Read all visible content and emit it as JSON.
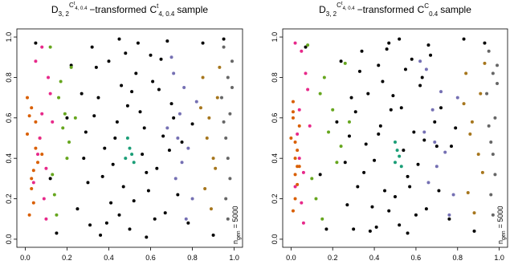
{
  "chart_data": [
    {
      "type": "scatter",
      "title": {
        "base": "D",
        "sub": "3, 2",
        "sup": "C",
        "sup_sup": "t",
        "sup_sub": "4, 0.4",
        "middle": "−transformed",
        "copula": "C",
        "copula_sup": "t",
        "copula_sub": "4, 0.4",
        "end": "sample"
      },
      "annotation": {
        "base": "n",
        "sub": "gen",
        "rest": "= 5000"
      },
      "xlim": [
        -0.04,
        1.04
      ],
      "ylim": [
        -0.04,
        1.04
      ],
      "xticks": [
        {
          "value": 0,
          "label": "0.0"
        },
        0.2,
        0.4,
        0.6,
        0.8,
        {
          "value": 1,
          "label": "1.0"
        }
      ],
      "yticks": [
        {
          "value": 0,
          "label": "0.0"
        },
        0.2,
        0.4,
        0.6,
        0.8,
        {
          "value": 1,
          "label": "1.0"
        }
      ],
      "series": [
        {
          "color": "#000000",
          "x": [
            0.32,
            0.45,
            0.61,
            0.28,
            0.55,
            0.73,
            0.4,
            0.5,
            0.66,
            0.35,
            0.58,
            0.48,
            0.25,
            0.7,
            0.38,
            0.62,
            0.44,
            0.53,
            0.3,
            0.68,
            0.42,
            0.57,
            0.36,
            0.64,
            0.47,
            0.22,
            0.75,
            0.52,
            0.33,
            0.6,
            0.05,
            0.15,
            0.85,
            0.95,
            0.12,
            0.9,
            0.27,
            0.78,
            0.41,
            0.56,
            0.34,
            0.63,
            0.49,
            0.71,
            0.39,
            0.59,
            0.46,
            0.29,
            0.67,
            0.54,
            0.2,
            0.8,
            0.43,
            0.51,
            0.37,
            0.65,
            0.31,
            0.69,
            0.45,
            0.58
          ],
          "y": [
            0.95,
            0.12,
            0.78,
            0.4,
            0.63,
            0.22,
            0.88,
            0.05,
            0.51,
            0.7,
            0.33,
            0.92,
            0.15,
            0.67,
            0.45,
            0.1,
            0.58,
            0.82,
            0.28,
            0.98,
            0.37,
            0.55,
            0.02,
            0.74,
            0.26,
            0.86,
            0.48,
            0.19,
            0.61,
            0.91,
            0.97,
            0.03,
            0.97,
            0.99,
            0.3,
            0.02,
            0.72,
            0.08,
            0.18,
            0.42,
            0.85,
            0.35,
            0.66,
            0.6,
            0.08,
            0.24,
            0.76,
            0.53,
            0.13,
            0.97,
            0.6,
            0.57,
            0.5,
            0.73,
            0.31,
            0.89,
            0.07,
            0.44,
            0.99,
            0.01
          ]
        },
        {
          "color": "#d95f02",
          "x": [
            0.01,
            0.03,
            0.05,
            0.02,
            0.04,
            0.06,
            0.01,
            0.03,
            0.07,
            0.02,
            0.05,
            0.04,
            0.08,
            0.03
          ],
          "y": [
            0.52,
            0.3,
            0.45,
            0.61,
            0.18,
            0.38,
            0.7,
            0.25,
            0.5,
            0.12,
            0.58,
            0.34,
            0.42,
            0.65
          ]
        },
        {
          "color": "#e7298a",
          "x": [
            0.05,
            0.08,
            0.1,
            0.12,
            0.07,
            0.09,
            0.11,
            0.06,
            0.13,
            0.04,
            0.1,
            0.08
          ],
          "y": [
            0.88,
            0.62,
            0.35,
            0.72,
            0.5,
            0.2,
            0.8,
            0.42,
            0.58,
            0.28,
            0.1,
            0.95
          ]
        },
        {
          "color": "#66a61e",
          "x": [
            0.12,
            0.16,
            0.2,
            0.14,
            0.18,
            0.22,
            0.15,
            0.19,
            0.13,
            0.21,
            0.17,
            0.24
          ],
          "y": [
            0.95,
            0.7,
            0.4,
            0.22,
            0.55,
            0.85,
            0.12,
            0.62,
            0.32,
            0.48,
            0.78,
            0.6
          ]
        },
        {
          "color": "#7570b3",
          "x": [
            0.7,
            0.74,
            0.78,
            0.72,
            0.76,
            0.8,
            0.68,
            0.75,
            0.82,
            0.71,
            0.77,
            0.73
          ],
          "y": [
            0.9,
            0.62,
            0.45,
            0.3,
            0.75,
            0.2,
            0.55,
            0.38,
            0.68,
            0.82,
            0.1,
            0.5
          ]
        },
        {
          "color": "#a6761d",
          "x": [
            0.85,
            0.88,
            0.9,
            0.86,
            0.92,
            0.89,
            0.87,
            0.91,
            0.84,
            0.93
          ],
          "y": [
            0.8,
            0.6,
            0.4,
            0.25,
            0.7,
            0.15,
            0.5,
            0.35,
            0.65,
            0.85
          ]
        },
        {
          "color": "#666666",
          "x": [
            0.95,
            0.97,
            0.98,
            0.96,
            0.99,
            0.94,
            0.97,
            0.98,
            0.96,
            0.99,
            0.95,
            0.97
          ],
          "y": [
            0.95,
            0.8,
            0.62,
            0.5,
            0.88,
            0.7,
            0.4,
            0.3,
            0.2,
            0.75,
            0.58,
            0.1
          ]
        },
        {
          "color": "#1b9e77",
          "x": [
            0.48,
            0.5,
            0.52,
            0.49,
            0.51
          ],
          "y": [
            0.4,
            0.45,
            0.38,
            0.5,
            0.42
          ]
        }
      ]
    },
    {
      "type": "scatter",
      "title": {
        "base": "D",
        "sub": "3, 2",
        "sup": "C",
        "sup_sup": "t",
        "sup_sub": "4, 0.4",
        "middle": "−transformed",
        "copula": "C",
        "copula_sup": "C",
        "copula_sub": "0.4",
        "end": "sample"
      },
      "annotation": {
        "base": "n",
        "sub": "gen",
        "rest": "= 5000"
      },
      "xlim": [
        -0.04,
        1.04
      ],
      "ylim": [
        -0.04,
        1.04
      ],
      "xticks": [
        {
          "value": 0,
          "label": "0.0"
        },
        0.2,
        0.4,
        0.6,
        0.8,
        {
          "value": 1,
          "label": "1.0"
        }
      ],
      "yticks": [
        {
          "value": 0,
          "label": "0.0"
        },
        0.2,
        0.4,
        0.6,
        0.8,
        {
          "value": 1,
          "label": "1.0"
        }
      ],
      "series": [
        {
          "color": "#000000",
          "x": [
            0.34,
            0.47,
            0.63,
            0.26,
            0.53,
            0.71,
            0.42,
            0.52,
            0.64,
            0.37,
            0.56,
            0.46,
            0.27,
            0.72,
            0.36,
            0.6,
            0.43,
            0.55,
            0.32,
            0.66,
            0.4,
            0.59,
            0.38,
            0.62,
            0.45,
            0.24,
            0.77,
            0.5,
            0.31,
            0.58,
            0.07,
            0.17,
            0.83,
            0.93,
            0.14,
            0.88,
            0.29,
            0.76,
            0.39,
            0.54,
            0.33,
            0.61,
            0.48,
            0.69,
            0.41,
            0.57,
            0.44,
            0.28,
            0.65,
            0.52,
            0.22,
            0.79,
            0.42,
            0.49,
            0.35,
            0.67,
            0.3,
            0.7,
            0.47,
            0.56
          ],
          "y": [
            0.93,
            0.14,
            0.8,
            0.38,
            0.65,
            0.24,
            0.86,
            0.07,
            0.49,
            0.72,
            0.31,
            0.94,
            0.17,
            0.65,
            0.47,
            0.12,
            0.56,
            0.84,
            0.26,
            0.96,
            0.39,
            0.53,
            0.04,
            0.76,
            0.24,
            0.88,
            0.46,
            0.21,
            0.63,
            0.89,
            0.95,
            0.05,
            0.99,
            0.97,
            0.32,
            0.04,
            0.7,
            0.1,
            0.16,
            0.44,
            0.83,
            0.37,
            0.64,
            0.58,
            0.06,
            0.26,
            0.78,
            0.51,
            0.15,
            0.99,
            0.58,
            0.55,
            0.52,
            0.71,
            0.33,
            0.91,
            0.05,
            0.46,
            0.97,
            0.03
          ]
        },
        {
          "color": "#d95f02",
          "x": [
            0.0,
            0.02,
            0.03,
            0.01,
            0.02,
            0.04,
            0.01,
            0.03,
            0.02,
            0.01,
            0.04,
            0.03,
            0.02,
            0.01
          ],
          "y": [
            0.5,
            0.32,
            0.44,
            0.6,
            0.2,
            0.36,
            0.68,
            0.27,
            0.48,
            0.14,
            0.56,
            0.36,
            0.4,
            0.63
          ]
        },
        {
          "color": "#e7298a",
          "x": [
            0.02,
            0.04,
            0.06,
            0.08,
            0.03,
            0.05,
            0.07,
            0.04,
            0.09,
            0.02,
            0.06,
            0.05
          ],
          "y": [
            0.97,
            0.64,
            0.33,
            0.74,
            0.52,
            0.18,
            0.82,
            0.4,
            0.56,
            0.26,
            0.08,
            0.93
          ]
        },
        {
          "color": "#66a61e",
          "x": [
            0.08,
            0.14,
            0.22,
            0.12,
            0.18,
            0.26,
            0.15,
            0.2,
            0.1,
            0.24,
            0.16,
            0.28
          ],
          "y": [
            0.96,
            0.72,
            0.38,
            0.2,
            0.53,
            0.87,
            0.1,
            0.64,
            0.3,
            0.46,
            0.8,
            0.58
          ]
        },
        {
          "color": "#7570b3",
          "x": [
            0.62,
            0.68,
            0.74,
            0.66,
            0.72,
            0.78,
            0.64,
            0.7,
            0.8,
            0.65,
            0.76,
            0.69
          ],
          "y": [
            0.88,
            0.64,
            0.43,
            0.28,
            0.73,
            0.22,
            0.53,
            0.36,
            0.7,
            0.84,
            0.12,
            0.48
          ]
        },
        {
          "color": "#a6761d",
          "x": [
            0.84,
            0.87,
            0.9,
            0.85,
            0.91,
            0.88,
            0.86,
            0.92,
            0.83,
            0.93
          ],
          "y": [
            0.82,
            0.58,
            0.42,
            0.23,
            0.72,
            0.13,
            0.52,
            0.33,
            0.67,
            0.87
          ]
        },
        {
          "color": "#666666",
          "x": [
            0.95,
            0.97,
            0.98,
            0.96,
            0.99,
            0.94,
            0.97,
            0.98,
            0.96,
            0.99,
            0.95,
            0.97
          ],
          "y": [
            0.93,
            0.82,
            0.6,
            0.48,
            0.86,
            0.72,
            0.42,
            0.32,
            0.22,
            0.77,
            0.56,
            0.12
          ]
        },
        {
          "color": "#1b9e77",
          "x": [
            0.5,
            0.51,
            0.53,
            0.5,
            0.52
          ],
          "y": [
            0.38,
            0.44,
            0.36,
            0.48,
            0.41
          ]
        }
      ]
    }
  ]
}
